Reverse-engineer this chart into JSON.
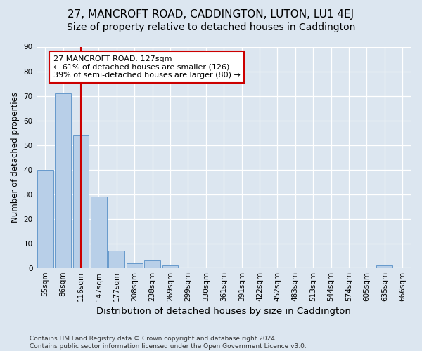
{
  "title": "27, MANCROFT ROAD, CADDINGTON, LUTON, LU1 4EJ",
  "subtitle": "Size of property relative to detached houses in Caddington",
  "xlabel": "Distribution of detached houses by size in Caddington",
  "ylabel": "Number of detached properties",
  "bar_labels": [
    "55sqm",
    "86sqm",
    "116sqm",
    "147sqm",
    "177sqm",
    "208sqm",
    "238sqm",
    "269sqm",
    "299sqm",
    "330sqm",
    "361sqm",
    "391sqm",
    "422sqm",
    "452sqm",
    "483sqm",
    "513sqm",
    "544sqm",
    "574sqm",
    "605sqm",
    "635sqm",
    "666sqm"
  ],
  "bar_vals_full": [
    40,
    71,
    54,
    29,
    7,
    2,
    3,
    1,
    0,
    0,
    0,
    0,
    0,
    0,
    0,
    0,
    0,
    0,
    0,
    1,
    0
  ],
  "bar_color": "#b8cfe8",
  "bar_edge_color": "#6699cc",
  "vline_x": 2.5,
  "vline_color": "#cc0000",
  "annotation_text": "27 MANCROFT ROAD: 127sqm\n← 61% of detached houses are smaller (126)\n39% of semi-detached houses are larger (80) →",
  "annotation_box_color": "#ffffff",
  "annotation_box_edge": "#cc0000",
  "ylim": [
    0,
    90
  ],
  "yticks": [
    0,
    10,
    20,
    30,
    40,
    50,
    60,
    70,
    80,
    90
  ],
  "bg_color": "#dce6f0",
  "plot_bg_color": "#dce6f0",
  "footer": "Contains HM Land Registry data © Crown copyright and database right 2024.\nContains public sector information licensed under the Open Government Licence v3.0.",
  "title_fontsize": 11,
  "subtitle_fontsize": 10,
  "xlabel_fontsize": 9.5,
  "ylabel_fontsize": 8.5,
  "tick_fontsize": 7.5,
  "footer_fontsize": 6.5
}
